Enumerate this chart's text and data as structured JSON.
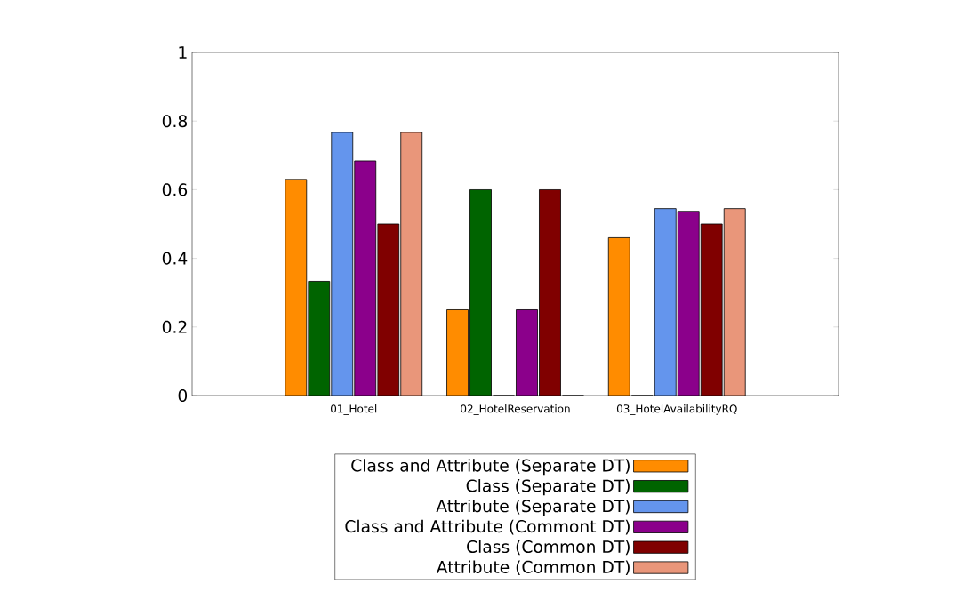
{
  "chart_data": {
    "type": "bar",
    "categories": [
      "01_Hotel",
      "02_HotelReservation",
      "03_HotelAvailabilityRQ"
    ],
    "series": [
      {
        "name": "Class and Attribute (Separate DT)",
        "color": "#ff8c00",
        "values": [
          0.63,
          0.25,
          0.46
        ]
      },
      {
        "name": "Class (Separate DT)",
        "color": "#006400",
        "values": [
          0.333,
          0.6,
          0
        ]
      },
      {
        "name": "Attribute (Separate DT)",
        "color": "#6495ed",
        "values": [
          0.767,
          0,
          0.545
        ]
      },
      {
        "name": "Class and Attribute (Commont DT)",
        "color": "#8b008b",
        "values": [
          0.684,
          0.25,
          0.537
        ]
      },
      {
        "name": "Class (Common DT)",
        "color": "#800000",
        "values": [
          0.5,
          0.6,
          0.5
        ]
      },
      {
        "name": "Attribute (Common DT)",
        "color": "#e9967a",
        "values": [
          0.767,
          0,
          0.545
        ]
      }
    ],
    "ylim": [
      0,
      1
    ],
    "yticks": [
      0,
      0.2,
      0.4,
      0.6,
      0.8,
      1
    ],
    "legend": "bottom",
    "grid": false
  }
}
